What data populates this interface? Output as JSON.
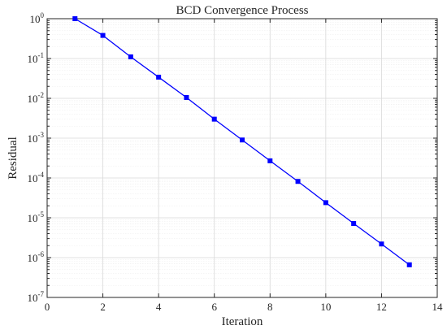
{
  "chart_data": {
    "type": "line",
    "title": "BCD Convergence Process",
    "xlabel": "Iteration",
    "ylabel": "Residual",
    "xlim": [
      0,
      14
    ],
    "ylim": [
      1e-07,
      1
    ],
    "yscale": "log",
    "grid": true,
    "x_ticks": [
      0,
      2,
      4,
      6,
      8,
      10,
      12,
      14
    ],
    "y_ticks": [
      {
        "base": "10",
        "exp": "0"
      },
      {
        "base": "10",
        "exp": "-1"
      },
      {
        "base": "10",
        "exp": "-2"
      },
      {
        "base": "10",
        "exp": "-3"
      },
      {
        "base": "10",
        "exp": "-4"
      },
      {
        "base": "10",
        "exp": "-5"
      },
      {
        "base": "10",
        "exp": "-6"
      },
      {
        "base": "10",
        "exp": "-7"
      }
    ],
    "series": [
      {
        "color": "#0000ff",
        "marker": "square",
        "x": [
          1,
          2,
          3,
          4,
          5,
          6,
          7,
          8,
          9,
          10,
          11,
          12,
          13
        ],
        "y": [
          1.0,
          0.38,
          0.11,
          0.034,
          0.0105,
          0.003,
          0.0009,
          0.00027,
          8.2e-05,
          2.4e-05,
          7.2e-06,
          2.2e-06,
          6.6e-07
        ]
      }
    ]
  }
}
